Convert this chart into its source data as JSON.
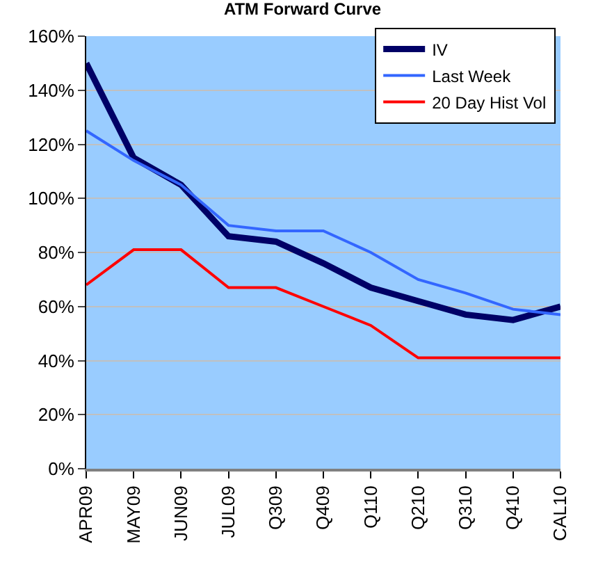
{
  "chart_data": {
    "type": "line",
    "title": "ATM Forward Curve",
    "categories": [
      "APR09",
      "MAY09",
      "JUN09",
      "JUL09",
      "Q309",
      "Q409",
      "Q110",
      "Q210",
      "Q310",
      "Q410",
      "CAL10"
    ],
    "series": [
      {
        "name": "IV",
        "color": "#000066",
        "values": [
          150,
          115,
          105,
          86,
          84,
          76,
          67,
          62,
          57,
          55,
          60
        ]
      },
      {
        "name": "Last Week",
        "color": "#3366ff",
        "values": [
          125,
          114,
          105,
          90,
          88,
          88,
          80,
          70,
          65,
          59,
          57
        ]
      },
      {
        "name": "20 Day Hist Vol",
        "color": "#ff0000",
        "values": [
          68,
          81,
          81,
          67,
          67,
          60,
          53,
          41,
          41,
          41,
          41
        ]
      }
    ],
    "ylim": [
      0,
      160
    ],
    "yticks": [
      {
        "value": 0,
        "label": "0%"
      },
      {
        "value": 20,
        "label": "20%"
      },
      {
        "value": 40,
        "label": "40%"
      },
      {
        "value": 60,
        "label": "60%"
      },
      {
        "value": 80,
        "label": "80%"
      },
      {
        "value": 100,
        "label": "100%"
      },
      {
        "value": 120,
        "label": "120%"
      },
      {
        "value": 140,
        "label": "140%"
      },
      {
        "value": 160,
        "label": "160%"
      }
    ],
    "grid": "y",
    "legend": "top right",
    "marker": "none",
    "line_style": "solid"
  }
}
